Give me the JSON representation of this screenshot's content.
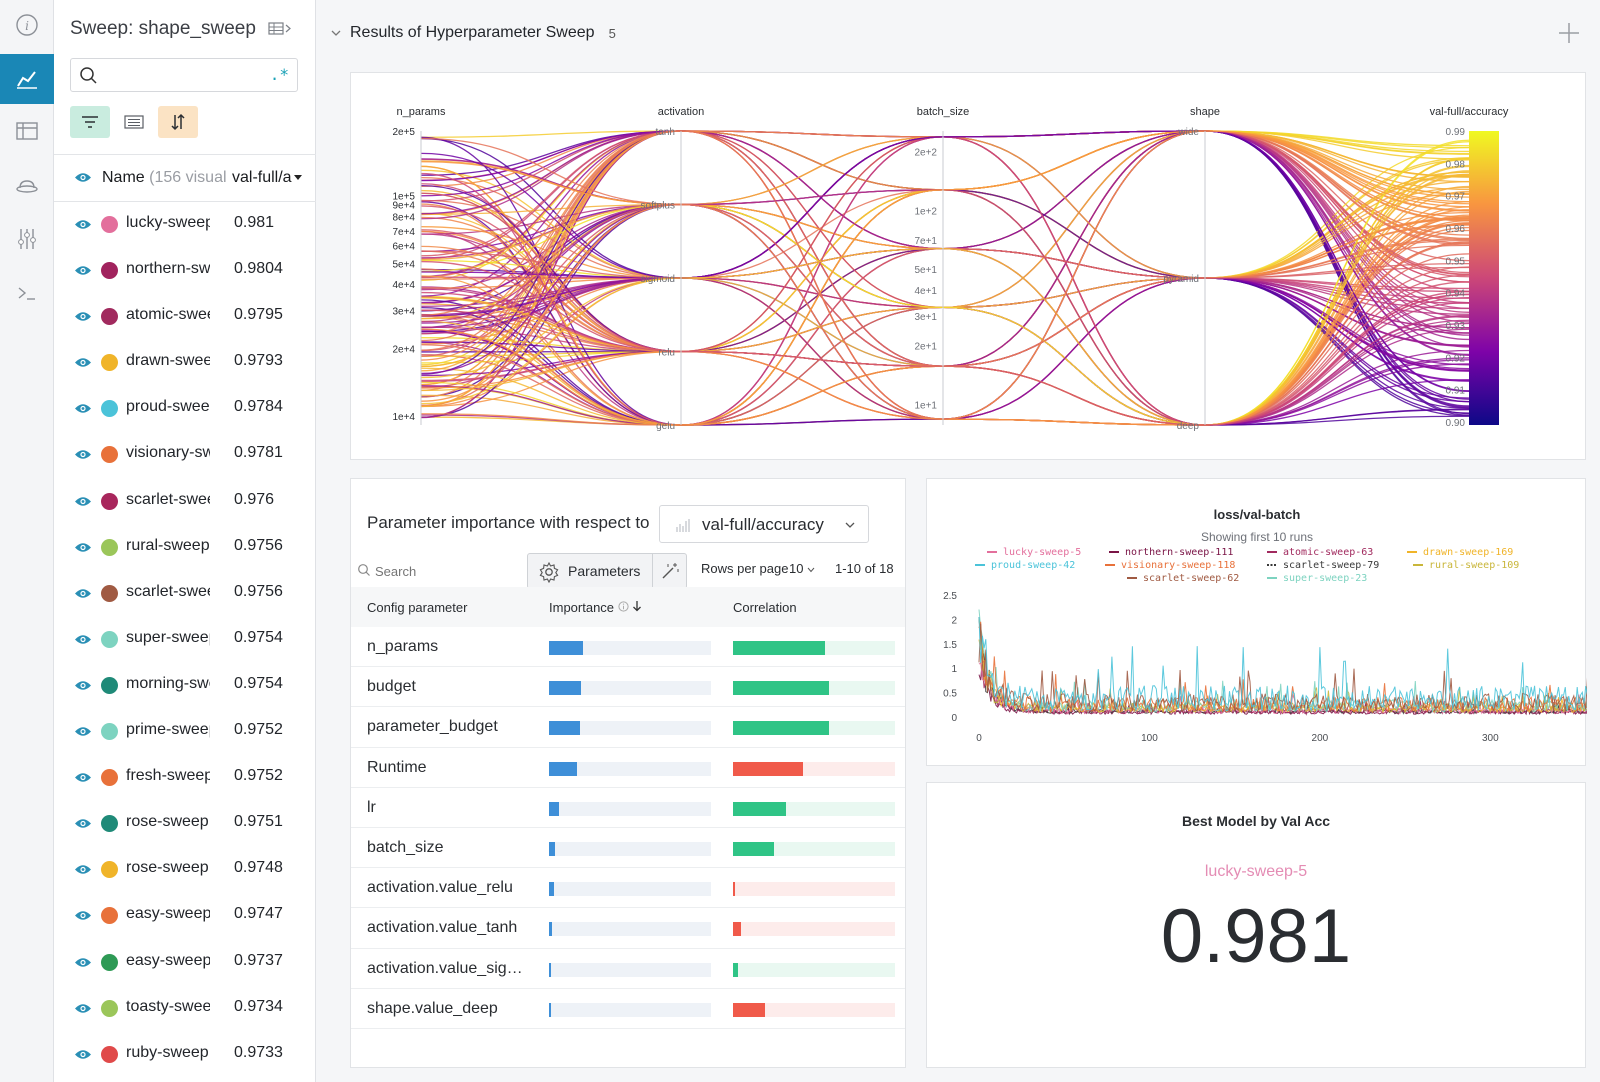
{
  "rail": {
    "icons": [
      "info-icon",
      "chart-icon",
      "table-icon",
      "hat-icon",
      "sliders-icon",
      "terminal-icon"
    ],
    "active": "chart-icon",
    "accent": "#1a87b6"
  },
  "sidebar": {
    "title": "Sweep: shape_sweep",
    "search_placeholder": "",
    "regex_label": ".*",
    "header": {
      "name_label": "Name",
      "name_count": "(156 visual",
      "metric_label": "val-full/a"
    },
    "runs": [
      {
        "name": "lucky-sweep",
        "value": "0.981",
        "color": "#e36f9c"
      },
      {
        "name": "northern-sweep",
        "value": "0.9804",
        "color": "#a1235e"
      },
      {
        "name": "atomic-sweep",
        "value": "0.9795",
        "color": "#a12a5e"
      },
      {
        "name": "drawn-sweep",
        "value": "0.9793",
        "color": "#f0b429"
      },
      {
        "name": "proud-sweep",
        "value": "0.9784",
        "color": "#4bc3d9"
      },
      {
        "name": "visionary-sweep",
        "value": "0.9781",
        "color": "#e8713a"
      },
      {
        "name": "scarlet-sweep",
        "value": "0.976",
        "color": "#a8265c"
      },
      {
        "name": "rural-sweep",
        "value": "0.9756",
        "color": "#9bc65a"
      },
      {
        "name": "scarlet-sweep",
        "value": "0.9756",
        "color": "#a05a42"
      },
      {
        "name": "super-sweep",
        "value": "0.9754",
        "color": "#7dd3c0"
      },
      {
        "name": "morning-sweep",
        "value": "0.9754",
        "color": "#1f8a78"
      },
      {
        "name": "prime-sweep",
        "value": "0.9752",
        "color": "#7dd3c0"
      },
      {
        "name": "fresh-sweep",
        "value": "0.9752",
        "color": "#e8713a"
      },
      {
        "name": "rose-sweep",
        "value": "0.9751",
        "color": "#1f8a78"
      },
      {
        "name": "rose-sweep",
        "value": "0.9748",
        "color": "#f0b429"
      },
      {
        "name": "easy-sweep",
        "value": "0.9747",
        "color": "#e8713a"
      },
      {
        "name": "easy-sweep",
        "value": "0.9737",
        "color": "#2e9a55"
      },
      {
        "name": "toasty-sweep",
        "value": "0.9734",
        "color": "#9bc65a"
      },
      {
        "name": "ruby-sweep",
        "value": "0.9733",
        "color": "#e04a4a"
      }
    ]
  },
  "section": {
    "title": "Results of Hyperparameter Sweep",
    "count": "5"
  },
  "parallel_coords": {
    "axes": [
      {
        "label": "n_params",
        "ticks": [
          "2e+5",
          "1e+5",
          "9e+4",
          "8e+4",
          "7e+4",
          "6e+4",
          "5e+4",
          "4e+4",
          "3e+4",
          "2e+4",
          "1e+4"
        ]
      },
      {
        "label": "activation",
        "ticks": [
          "tanh",
          "softplus",
          "sigmoid",
          "relu",
          "gelu"
        ]
      },
      {
        "label": "batch_size",
        "ticks": [
          "2e+2",
          "1e+2",
          "7e+1",
          "5e+1",
          "4e+1",
          "3e+1",
          "2e+1",
          "1e+1"
        ]
      },
      {
        "label": "shape",
        "ticks": [
          "wide",
          "pyramid",
          "deep"
        ]
      },
      {
        "label": "val-full/accuracy",
        "ticks": [
          "0.99",
          "0.98",
          "0.97",
          "0.96",
          "0.95",
          "0.94",
          "0.93",
          "0.92",
          "0.91",
          "0.90"
        ]
      }
    ]
  },
  "importance": {
    "title": "Parameter importance with respect to",
    "metric": "val-full/accuracy",
    "search_placeholder": "Search",
    "params_button": "Parameters",
    "rows_per_page_label": "Rows per page",
    "rows_per_page_value": "10",
    "page_range": "1-10 of 18",
    "columns": [
      "Config parameter",
      "Importance",
      "Correlation"
    ],
    "rows": [
      {
        "name": "n_params",
        "importance": 0.21,
        "correlation": 0.57,
        "sign": "positive"
      },
      {
        "name": "budget",
        "importance": 0.2,
        "correlation": 0.59,
        "sign": "positive"
      },
      {
        "name": "parameter_budget",
        "importance": 0.19,
        "correlation": 0.59,
        "sign": "positive"
      },
      {
        "name": "Runtime",
        "importance": 0.17,
        "correlation": 0.43,
        "sign": "negative"
      },
      {
        "name": "lr",
        "importance": 0.06,
        "correlation": 0.33,
        "sign": "positive"
      },
      {
        "name": "batch_size",
        "importance": 0.04,
        "correlation": 0.25,
        "sign": "positive"
      },
      {
        "name": "activation.value_relu",
        "importance": 0.03,
        "correlation": 0.01,
        "sign": "negative"
      },
      {
        "name": "activation.value_tanh",
        "importance": 0.02,
        "correlation": 0.05,
        "sign": "negative"
      },
      {
        "name": "activation.value_sig…",
        "importance": 0.015,
        "correlation": 0.03,
        "sign": "positive"
      },
      {
        "name": "shape.value_deep",
        "importance": 0.012,
        "correlation": 0.2,
        "sign": "negative"
      }
    ],
    "colors": {
      "importance": "#3e8fd8",
      "positive": "#2fc486",
      "negative": "#f05a4a",
      "positive_track": "#e9f8f1",
      "negative_track": "#fdeceb"
    }
  },
  "loss_chart": {
    "title": "loss/val-batch",
    "subtitle": "Showing first 10 runs",
    "chart_data": {
      "type": "line",
      "title": "loss/val-batch",
      "xlim": [
        0,
        345
      ],
      "ylim": [
        0,
        2.5
      ],
      "xticks": [
        "0",
        "100",
        "200",
        "300"
      ],
      "yticks": [
        "0",
        "0.5",
        "1",
        "1.5",
        "2",
        "2.5"
      ],
      "legend_position": "top",
      "series": [
        {
          "name": "lucky-sweep-5",
          "color": "#e36f9c",
          "base": 0.12,
          "noise": 0.16
        },
        {
          "name": "northern-sweep-111",
          "color": "#7a1446",
          "base": 0.08,
          "noise": 0.08
        },
        {
          "name": "atomic-sweep-63",
          "color": "#a12a5e",
          "base": 0.1,
          "noise": 0.1
        },
        {
          "name": "drawn-sweep-169",
          "color": "#f0b429",
          "base": 0.14,
          "noise": 0.14
        },
        {
          "name": "proud-sweep-42",
          "color": "#4bc3d9",
          "base": 0.28,
          "noise": 0.52
        },
        {
          "name": "visionary-sweep-118",
          "color": "#e8713a",
          "base": 0.2,
          "noise": 0.3
        },
        {
          "name": "scarlet-sweep-79",
          "color": "#3a3a3a",
          "base": 0.1,
          "noise": 0.08
        },
        {
          "name": "rural-sweep-109",
          "color": "#c9b63a",
          "base": 0.16,
          "noise": 0.2
        },
        {
          "name": "scarlet-sweep-62",
          "color": "#a05a42",
          "base": 0.22,
          "noise": 0.38
        },
        {
          "name": "super-sweep-23",
          "color": "#7dd3c0",
          "base": 0.18,
          "noise": 0.26
        }
      ]
    }
  },
  "best_model": {
    "title": "Best Model by Val Acc",
    "run_name": "lucky-sweep-5",
    "value": "0.981"
  }
}
